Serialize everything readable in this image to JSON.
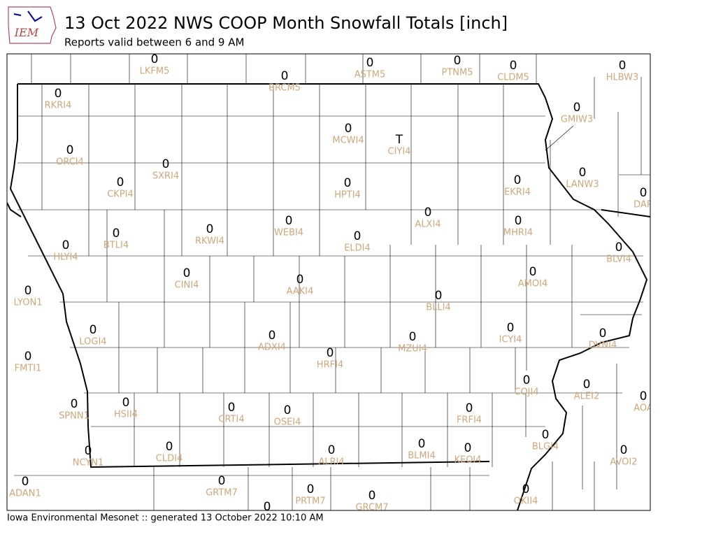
{
  "header": {
    "logo": "IEM",
    "title": "13 Oct 2022 NWS COOP Month Snowfall Totals [inch]",
    "subtitle": "Reports valid between 6 and 9 AM"
  },
  "stations": [
    {
      "id": "LKFM5",
      "value": 0
    },
    {
      "id": "BRCM5",
      "value": 0
    },
    {
      "id": "ASTM5",
      "value": 0
    },
    {
      "id": "PTNM5",
      "value": 0
    },
    {
      "id": "CLDM5",
      "value": 0
    },
    {
      "id": "HLBW3",
      "value": 0
    },
    {
      "id": "RKRI4",
      "value": 0
    },
    {
      "id": "GMIW3",
      "value": 0
    },
    {
      "id": "MCWI4",
      "value": 0
    },
    {
      "id": "CIYI4",
      "value": "T"
    },
    {
      "id": "ORCI4",
      "value": 0
    },
    {
      "id": "SXRI4",
      "value": 0
    },
    {
      "id": "CKPI4",
      "value": 0
    },
    {
      "id": "HPTI4",
      "value": 0
    },
    {
      "id": "EKRI4",
      "value": 0
    },
    {
      "id": "LANW3",
      "value": 0
    },
    {
      "id": "DAR",
      "value": 0
    },
    {
      "id": "ALXI4",
      "value": 0
    },
    {
      "id": "WEBI4",
      "value": 0
    },
    {
      "id": "RKWI4",
      "value": 0
    },
    {
      "id": "BTLI4",
      "value": 0
    },
    {
      "id": "MHRI4",
      "value": 0
    },
    {
      "id": "ELDI4",
      "value": 0
    },
    {
      "id": "HLYI4",
      "value": 0
    },
    {
      "id": "BLVI4",
      "value": 0
    },
    {
      "id": "AMOI4",
      "value": 0
    },
    {
      "id": "CINI4",
      "value": 0
    },
    {
      "id": "AAKI4",
      "value": 0
    },
    {
      "id": "LYON1",
      "value": 0
    },
    {
      "id": "BLLI4",
      "value": 0
    },
    {
      "id": "LOGI4",
      "value": 0
    },
    {
      "id": "ADXI4",
      "value": 0
    },
    {
      "id": "ICYI4",
      "value": 0
    },
    {
      "id": "DVNI4",
      "value": 0
    },
    {
      "id": "MZUI4",
      "value": 0
    },
    {
      "id": "HRFI4",
      "value": 0
    },
    {
      "id": "FMTI1",
      "value": 0
    },
    {
      "id": "COJI4",
      "value": 0
    },
    {
      "id": "ALEI2",
      "value": 0
    },
    {
      "id": "AOA",
      "value": 0
    },
    {
      "id": "SPNN1",
      "value": 0
    },
    {
      "id": "HSII4",
      "value": 0
    },
    {
      "id": "CRTI4",
      "value": 0
    },
    {
      "id": "OSEI4",
      "value": 0
    },
    {
      "id": "FRFI4",
      "value": 0
    },
    {
      "id": "BLGI4",
      "value": 0
    },
    {
      "id": "BLMI4",
      "value": 0
    },
    {
      "id": "KEOI4",
      "value": 0
    },
    {
      "id": "CLDI4",
      "value": 0
    },
    {
      "id": "ALRI4",
      "value": 0
    },
    {
      "id": "NCYN1",
      "value": 0
    },
    {
      "id": "AVOI2",
      "value": 0
    },
    {
      "id": "ADAN1",
      "value": 0
    },
    {
      "id": "GRTM7",
      "value": 0
    },
    {
      "id": "PRTM7",
      "value": 0
    },
    {
      "id": "GRCM7",
      "value": 0
    },
    {
      "id": "OKII4",
      "value": 0
    },
    {
      "value": 0
    }
  ],
  "footer": "Iowa Environmental Mesonet :: generated 13 October 2022 10:10 AM"
}
